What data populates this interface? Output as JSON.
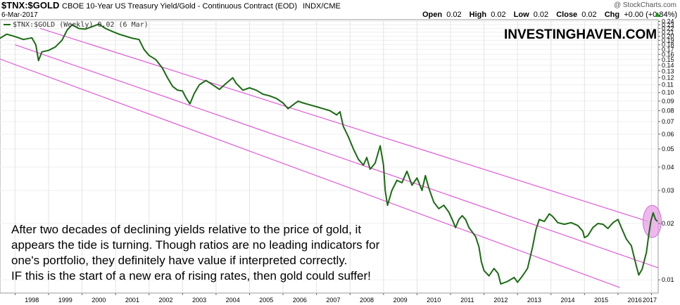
{
  "header": {
    "symbol": "$TNX:$GOLD",
    "description": "CBOE 10-Year US Treasury Yield/Gold - Continuous Contract (EOD)",
    "exchange": "INDX/CME",
    "date": "6-Mar-2017",
    "watermark": "@ StockCharts.com",
    "ohlc": [
      {
        "label": "Open",
        "value": "0.02"
      },
      {
        "label": "High",
        "value": "0.02"
      },
      {
        "label": "Low",
        "value": "0.02"
      },
      {
        "label": "Close",
        "value": "0.02"
      },
      {
        "label": "Chg",
        "value": "+0.00 (+0.84%)"
      }
    ],
    "chg_arrow": "up-arrow-icon",
    "up_color": "#1a9a1a"
  },
  "legend": {
    "text": "$TNX:$GOLD (Weekly) 0.02 (6 Mar)",
    "color": "#1a6b12"
  },
  "brand": "INVESTINGHAVEN.COM",
  "annotation": [
    "After two decades of declining yields relative to the price of gold, it",
    "appears the tide is turning. Though ratios are no leading indicators for",
    "one's portfolio, they definitely have value if interpreted correctly.",
    "IF this is the start of a new era of rising rates, then gold could suffer!"
  ],
  "chart_data": {
    "type": "line",
    "title": "$TNX:$GOLD",
    "y_scale": "log",
    "y_axis_position": "right",
    "ylim": [
      0.0085,
      0.245
    ],
    "xlim": [
      1997.55,
      2017.2
    ],
    "grid": "on",
    "x_ticks": [
      "1998",
      "1999",
      "2000",
      "2001",
      "2002",
      "2003",
      "2004",
      "2005",
      "2006",
      "2007",
      "2008",
      "2009",
      "2010",
      "2011",
      "2012",
      "2013",
      "2014",
      "2015",
      "2016",
      "2017"
    ],
    "y_ticks": [
      {
        "value": 0.24,
        "label": "0.24"
      },
      {
        "value": 0.23,
        "label": "0.23"
      },
      {
        "value": 0.22,
        "label": "0.22"
      },
      {
        "value": 0.21,
        "label": "0.21"
      },
      {
        "value": 0.2,
        "label": "0.20"
      },
      {
        "value": 0.19,
        "label": "0.19"
      },
      {
        "value": 0.18,
        "label": "0.18"
      },
      {
        "value": 0.17,
        "label": "0.17"
      },
      {
        "value": 0.16,
        "label": "0.16"
      },
      {
        "value": 0.15,
        "label": "0.15"
      },
      {
        "value": 0.14,
        "label": "0.14"
      },
      {
        "value": 0.13,
        "label": "0.13"
      },
      {
        "value": 0.12,
        "label": "0.12"
      },
      {
        "value": 0.11,
        "label": "0.11"
      },
      {
        "value": 0.1,
        "label": "0.10"
      },
      {
        "value": 0.09,
        "label": "0.09"
      },
      {
        "value": 0.08,
        "label": "0.08"
      },
      {
        "value": 0.07,
        "label": "0.07"
      },
      {
        "value": 0.06,
        "label": "0.06"
      },
      {
        "value": 0.05,
        "label": "0.05"
      },
      {
        "value": 0.04,
        "label": "0.04"
      },
      {
        "value": 0.03,
        "label": "0.03"
      },
      {
        "value": 0.02,
        "label": "0.02"
      },
      {
        "value": 0.01,
        "label": "0.01"
      }
    ],
    "series": [
      {
        "color": "#1a6b12",
        "points": [
          [
            1997.55,
            0.195
          ],
          [
            1997.75,
            0.205
          ],
          [
            1998.0,
            0.199
          ],
          [
            1998.25,
            0.192
          ],
          [
            1998.5,
            0.196
          ],
          [
            1998.62,
            0.18
          ],
          [
            1998.7,
            0.148
          ],
          [
            1998.8,
            0.165
          ],
          [
            1999.0,
            0.168
          ],
          [
            1999.2,
            0.175
          ],
          [
            1999.4,
            0.19
          ],
          [
            1999.55,
            0.215
          ],
          [
            1999.7,
            0.23
          ],
          [
            1999.9,
            0.22
          ],
          [
            2000.1,
            0.218
          ],
          [
            2000.3,
            0.225
          ],
          [
            2000.5,
            0.232
          ],
          [
            2000.7,
            0.22
          ],
          [
            2000.9,
            0.212
          ],
          [
            2001.1,
            0.205
          ],
          [
            2001.3,
            0.2
          ],
          [
            2001.5,
            0.195
          ],
          [
            2001.7,
            0.192
          ],
          [
            2001.85,
            0.17
          ],
          [
            2002.0,
            0.158
          ],
          [
            2002.2,
            0.15
          ],
          [
            2002.4,
            0.135
          ],
          [
            2002.55,
            0.12
          ],
          [
            2002.7,
            0.108
          ],
          [
            2002.85,
            0.103
          ],
          [
            2003.0,
            0.102
          ],
          [
            2003.1,
            0.094
          ],
          [
            2003.22,
            0.087
          ],
          [
            2003.35,
            0.099
          ],
          [
            2003.5,
            0.11
          ],
          [
            2003.7,
            0.116
          ],
          [
            2003.9,
            0.11
          ],
          [
            2004.1,
            0.104
          ],
          [
            2004.3,
            0.112
          ],
          [
            2004.5,
            0.12
          ],
          [
            2004.6,
            0.112
          ],
          [
            2004.8,
            0.103
          ],
          [
            2005.0,
            0.106
          ],
          [
            2005.2,
            0.103
          ],
          [
            2005.4,
            0.098
          ],
          [
            2005.6,
            0.096
          ],
          [
            2005.8,
            0.093
          ],
          [
            2006.0,
            0.088
          ],
          [
            2006.15,
            0.082
          ],
          [
            2006.3,
            0.086
          ],
          [
            2006.45,
            0.09
          ],
          [
            2006.6,
            0.088
          ],
          [
            2006.8,
            0.086
          ],
          [
            2007.0,
            0.084
          ],
          [
            2007.2,
            0.082
          ],
          [
            2007.4,
            0.08
          ],
          [
            2007.6,
            0.076
          ],
          [
            2007.7,
            0.079
          ],
          [
            2007.8,
            0.066
          ],
          [
            2007.95,
            0.058
          ],
          [
            2008.1,
            0.05
          ],
          [
            2008.25,
            0.044
          ],
          [
            2008.4,
            0.041
          ],
          [
            2008.5,
            0.045
          ],
          [
            2008.6,
            0.039
          ],
          [
            2008.75,
            0.042
          ],
          [
            2008.9,
            0.052
          ],
          [
            2009.0,
            0.041
          ],
          [
            2009.05,
            0.03
          ],
          [
            2009.12,
            0.025
          ],
          [
            2009.25,
            0.03
          ],
          [
            2009.4,
            0.034
          ],
          [
            2009.55,
            0.033
          ],
          [
            2009.7,
            0.038
          ],
          [
            2009.85,
            0.032
          ],
          [
            2010.0,
            0.035
          ],
          [
            2010.15,
            0.03
          ],
          [
            2010.25,
            0.036
          ],
          [
            2010.35,
            0.031
          ],
          [
            2010.5,
            0.026
          ],
          [
            2010.65,
            0.024
          ],
          [
            2010.8,
            0.025
          ],
          [
            2010.95,
            0.023
          ],
          [
            2011.05,
            0.021
          ],
          [
            2011.15,
            0.019
          ],
          [
            2011.25,
            0.021
          ],
          [
            2011.35,
            0.022
          ],
          [
            2011.45,
            0.021
          ],
          [
            2011.55,
            0.019
          ],
          [
            2011.65,
            0.018
          ],
          [
            2011.75,
            0.017
          ],
          [
            2011.85,
            0.015
          ],
          [
            2011.92,
            0.0125
          ],
          [
            2012.0,
            0.0112
          ],
          [
            2012.15,
            0.0105
          ],
          [
            2012.3,
            0.0115
          ],
          [
            2012.42,
            0.0108
          ],
          [
            2012.5,
            0.0095
          ],
          [
            2012.7,
            0.0098
          ],
          [
            2012.9,
            0.0103
          ],
          [
            2013.0,
            0.0097
          ],
          [
            2013.15,
            0.0105
          ],
          [
            2013.3,
            0.0115
          ],
          [
            2013.45,
            0.015
          ],
          [
            2013.55,
            0.0185
          ],
          [
            2013.65,
            0.021
          ],
          [
            2013.8,
            0.0205
          ],
          [
            2013.95,
            0.0225
          ],
          [
            2014.05,
            0.0218
          ],
          [
            2014.2,
            0.0202
          ],
          [
            2014.4,
            0.0198
          ],
          [
            2014.6,
            0.0202
          ],
          [
            2014.8,
            0.0195
          ],
          [
            2014.95,
            0.0182
          ],
          [
            2015.0,
            0.0168
          ],
          [
            2015.1,
            0.0172
          ],
          [
            2015.25,
            0.019
          ],
          [
            2015.4,
            0.02
          ],
          [
            2015.55,
            0.0198
          ],
          [
            2015.7,
            0.0188
          ],
          [
            2015.85,
            0.0202
          ],
          [
            2016.0,
            0.021
          ],
          [
            2016.1,
            0.019
          ],
          [
            2016.25,
            0.0165
          ],
          [
            2016.4,
            0.0152
          ],
          [
            2016.55,
            0.0118
          ],
          [
            2016.62,
            0.0106
          ],
          [
            2016.72,
            0.0114
          ],
          [
            2016.85,
            0.014
          ],
          [
            2016.92,
            0.0175
          ],
          [
            2016.98,
            0.0205
          ],
          [
            2017.05,
            0.0228
          ],
          [
            2017.12,
            0.021
          ],
          [
            2017.18,
            0.0205
          ]
        ]
      }
    ],
    "channel": [
      {
        "name": "channel-upper",
        "color": "#e05ad8",
        "points": [
          [
            1998.75,
            0.22
          ],
          [
            2016.9,
            0.0205
          ]
        ]
      },
      {
        "name": "channel-middle",
        "color": "#e05ad8",
        "points": [
          [
            1998.0,
            0.18
          ],
          [
            2017.2,
            0.0116
          ]
        ]
      },
      {
        "name": "channel-lower",
        "color": "#e05ad8",
        "points": [
          [
            1997.55,
            0.151
          ],
          [
            2016.05,
            0.0091
          ]
        ]
      }
    ],
    "highlight": {
      "color": "#e8a0e8",
      "x": 2017.02,
      "y": 0.0205
    }
  }
}
